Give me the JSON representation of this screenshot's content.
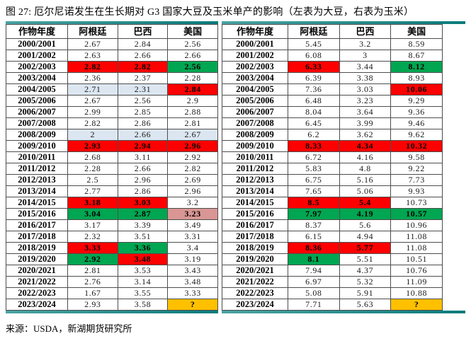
{
  "title": "图 27: 厄尔尼诺发生在生长期对 G3 国家大豆及玉米单产的影响（左表为大豆，右表为玉米）",
  "source": "来源：USDA，新湖期货研究所",
  "accent_colors": {
    "highlight_red": "#FF0000",
    "highlight_green": "#00A651",
    "highlight_light_blue": "#DCE6F1",
    "highlight_pink": "#D99694",
    "highlight_orange": "#FFC000",
    "rule_teal": "#0B7B7B"
  },
  "chart_data": [
    {
      "type": "table",
      "crop": "大豆",
      "columns": [
        "作物年度",
        "阿根廷",
        "巴西",
        "美国"
      ],
      "rows": [
        {
          "year": "2000/2001",
          "values": [
            "2.67",
            "2.84",
            "2.56"
          ],
          "highlights": [
            null,
            null,
            null
          ]
        },
        {
          "year": "2001/2002",
          "values": [
            "2.63",
            "2.66",
            "2.66"
          ],
          "highlights": [
            null,
            null,
            null
          ]
        },
        {
          "year": "2002/2003",
          "values": [
            "2.82",
            "2.82",
            "2.56"
          ],
          "highlights": [
            "red",
            "red",
            "green"
          ]
        },
        {
          "year": "2003/2004",
          "values": [
            "2.36",
            "2.37",
            "2.28"
          ],
          "highlights": [
            null,
            null,
            null
          ]
        },
        {
          "year": "2004/2005",
          "values": [
            "2.71",
            "2.31",
            "2.84"
          ],
          "highlights": [
            "blue",
            "blue",
            "red"
          ]
        },
        {
          "year": "2005/2006",
          "values": [
            "2.67",
            "2.56",
            "2.9"
          ],
          "highlights": [
            null,
            null,
            null
          ]
        },
        {
          "year": "2006/2007",
          "values": [
            "2.99",
            "2.85",
            "2.88"
          ],
          "highlights": [
            null,
            null,
            null
          ]
        },
        {
          "year": "2007/2008",
          "values": [
            "2.82",
            "2.86",
            "2.81"
          ],
          "highlights": [
            null,
            null,
            null
          ]
        },
        {
          "year": "2008/2009",
          "values": [
            "2",
            "2.66",
            "2.67"
          ],
          "highlights": [
            "blue",
            "blue",
            "blue"
          ]
        },
        {
          "year": "2009/2010",
          "values": [
            "2.93",
            "2.94",
            "2.96"
          ],
          "highlights": [
            "red",
            "red",
            "red"
          ]
        },
        {
          "year": "2010/2011",
          "values": [
            "2.68",
            "3.11",
            "2.92"
          ],
          "highlights": [
            null,
            null,
            null
          ]
        },
        {
          "year": "2011/2012",
          "values": [
            "2.28",
            "2.66",
            "2.82"
          ],
          "highlights": [
            null,
            null,
            null
          ]
        },
        {
          "year": "2012/2013",
          "values": [
            "2.5",
            "2.96",
            "2.69"
          ],
          "highlights": [
            null,
            null,
            null
          ]
        },
        {
          "year": "2013/2014",
          "values": [
            "2.77",
            "2.86",
            "2.96"
          ],
          "highlights": [
            null,
            null,
            null
          ]
        },
        {
          "year": "2014/2015",
          "values": [
            "3.18",
            "3.03",
            "3.2"
          ],
          "highlights": [
            "red",
            "red",
            null
          ]
        },
        {
          "year": "2015/2016",
          "values": [
            "3.04",
            "2.87",
            "3.23"
          ],
          "highlights": [
            "green",
            "green",
            "pink"
          ]
        },
        {
          "year": "2016/2017",
          "values": [
            "3.17",
            "3.39",
            "3.49"
          ],
          "highlights": [
            null,
            null,
            null
          ]
        },
        {
          "year": "2017/2018",
          "values": [
            "2.32",
            "3.51",
            "3.31"
          ],
          "highlights": [
            null,
            null,
            null
          ]
        },
        {
          "year": "2018/2019",
          "values": [
            "3.33",
            "3.36",
            "3.4"
          ],
          "highlights": [
            "red",
            "green",
            null
          ]
        },
        {
          "year": "2019/2020",
          "values": [
            "2.92",
            "3.48",
            "3.19"
          ],
          "highlights": [
            "green",
            "red",
            null
          ]
        },
        {
          "year": "2020/2021",
          "values": [
            "2.81",
            "3.53",
            "3.43"
          ],
          "highlights": [
            null,
            null,
            null
          ]
        },
        {
          "year": "2021/2022",
          "values": [
            "2.76",
            "3.14",
            "3.48"
          ],
          "highlights": [
            null,
            null,
            null
          ]
        },
        {
          "year": "2022/2023",
          "values": [
            "1.67",
            "3.55",
            "3.33"
          ],
          "highlights": [
            null,
            null,
            null
          ]
        },
        {
          "year": "2023/2024",
          "values": [
            "2.93",
            "3.58",
            "?"
          ],
          "highlights": [
            null,
            null,
            "orange"
          ]
        }
      ]
    },
    {
      "type": "table",
      "crop": "玉米",
      "columns": [
        "作物年度",
        "阿根廷",
        "巴西",
        "美国"
      ],
      "rows": [
        {
          "year": "2000/2001",
          "values": [
            "5.45",
            "3.2",
            "8.59"
          ],
          "highlights": [
            null,
            null,
            null
          ]
        },
        {
          "year": "2001/2002",
          "values": [
            "6.08",
            "3",
            "8.67"
          ],
          "highlights": [
            null,
            null,
            null
          ]
        },
        {
          "year": "2002/2003",
          "values": [
            "6.33",
            "3.44",
            "8.12"
          ],
          "highlights": [
            "red",
            null,
            "green"
          ]
        },
        {
          "year": "2003/2004",
          "values": [
            "6.39",
            "3.38",
            "8.93"
          ],
          "highlights": [
            null,
            null,
            null
          ]
        },
        {
          "year": "2004/2005",
          "values": [
            "7.36",
            "3.03",
            "10.06"
          ],
          "highlights": [
            null,
            null,
            "red"
          ]
        },
        {
          "year": "2005/2006",
          "values": [
            "6.48",
            "3.23",
            "9.29"
          ],
          "highlights": [
            null,
            null,
            null
          ]
        },
        {
          "year": "2006/2007",
          "values": [
            "8.04",
            "3.64",
            "9.36"
          ],
          "highlights": [
            null,
            null,
            null
          ]
        },
        {
          "year": "2007/2008",
          "values": [
            "6.45",
            "3.99",
            "9.46"
          ],
          "highlights": [
            null,
            null,
            null
          ]
        },
        {
          "year": "2008/2009",
          "values": [
            "6.2",
            "3.62",
            "9.62"
          ],
          "highlights": [
            null,
            null,
            null
          ]
        },
        {
          "year": "2009/2010",
          "values": [
            "8.33",
            "4.34",
            "10.32"
          ],
          "highlights": [
            "red",
            "red",
            "red"
          ]
        },
        {
          "year": "2010/2011",
          "values": [
            "6.72",
            "4.16",
            "9.58"
          ],
          "highlights": [
            null,
            null,
            null
          ]
        },
        {
          "year": "2011/2012",
          "values": [
            "5.83",
            "4.8",
            "9.22"
          ],
          "highlights": [
            null,
            null,
            null
          ]
        },
        {
          "year": "2012/2013",
          "values": [
            "6.75",
            "5.16",
            "7.73"
          ],
          "highlights": [
            null,
            null,
            null
          ]
        },
        {
          "year": "2013/2014",
          "values": [
            "7.65",
            "5.06",
            "9.93"
          ],
          "highlights": [
            null,
            null,
            null
          ]
        },
        {
          "year": "2014/2015",
          "values": [
            "8.5",
            "5.4",
            "10.73"
          ],
          "highlights": [
            "red",
            "red",
            null
          ]
        },
        {
          "year": "2015/2016",
          "values": [
            "7.97",
            "4.19",
            "10.57"
          ],
          "highlights": [
            "green",
            "green",
            "green"
          ]
        },
        {
          "year": "2016/2017",
          "values": [
            "8.37",
            "5.6",
            "10.96"
          ],
          "highlights": [
            null,
            null,
            null
          ]
        },
        {
          "year": "2017/2018",
          "values": [
            "6.15",
            "4.94",
            "11.08"
          ],
          "highlights": [
            null,
            null,
            null
          ]
        },
        {
          "year": "2018/2019",
          "values": [
            "8.36",
            "5.77",
            "11.08"
          ],
          "highlights": [
            "red",
            "red",
            null
          ]
        },
        {
          "year": "2019/2020",
          "values": [
            "8.1",
            "5.51",
            "10.51"
          ],
          "highlights": [
            "green",
            null,
            null
          ]
        },
        {
          "year": "2020/2021",
          "values": [
            "7.94",
            "4.37",
            "10.76"
          ],
          "highlights": [
            null,
            null,
            null
          ]
        },
        {
          "year": "2021/2022",
          "values": [
            "6.97",
            "5.32",
            "11.09"
          ],
          "highlights": [
            null,
            null,
            null
          ]
        },
        {
          "year": "2022/2023",
          "values": [
            "5.08",
            "5.91",
            "10.88"
          ],
          "highlights": [
            null,
            null,
            null
          ]
        },
        {
          "year": "2023/2024",
          "values": [
            "7.71",
            "5.63",
            "?"
          ],
          "highlights": [
            null,
            null,
            "orange"
          ]
        }
      ]
    }
  ]
}
